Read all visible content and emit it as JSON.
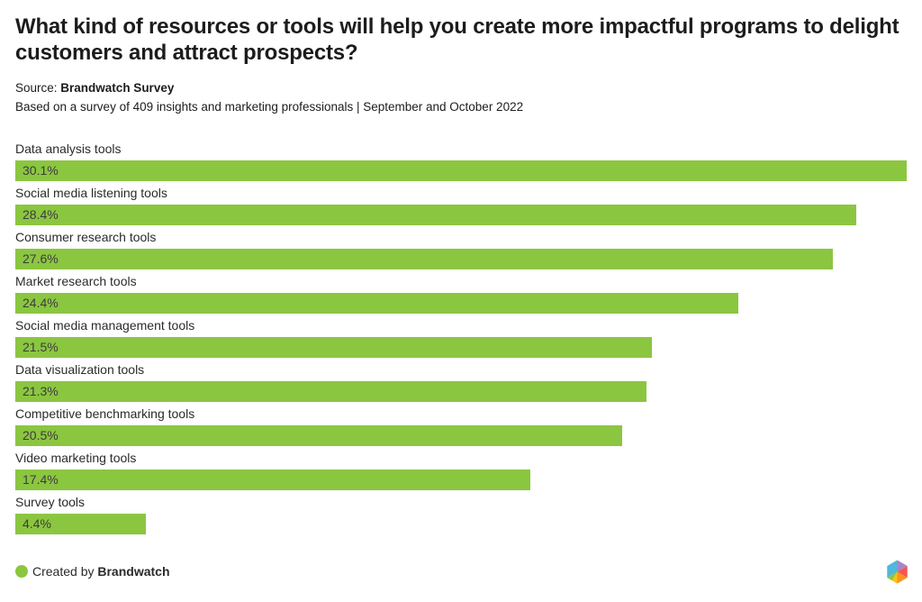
{
  "header": {
    "title": "What kind of resources or tools will help you create more impactful programs to delight customers and attract prospects?",
    "source_label": "Source:",
    "source_name": "Brandwatch Survey",
    "subtitle": "Based on a survey of 409 insights and marketing professionals | September and October 2022"
  },
  "chart_data": {
    "type": "bar",
    "orientation": "horizontal",
    "title": "What kind of resources or tools will help you create more impactful programs to delight customers and attract prospects?",
    "xlabel": "",
    "ylabel": "",
    "categories": [
      "Data analysis tools",
      "Social media listening tools",
      "Consumer research tools",
      "Market research tools",
      "Social media management tools",
      "Data visualization tools",
      "Competitive benchmarking tools",
      "Video marketing tools",
      "Survey tools"
    ],
    "values": [
      30.1,
      28.4,
      27.6,
      24.4,
      21.5,
      21.3,
      20.5,
      17.4,
      4.4
    ],
    "value_labels": [
      "30.1%",
      "28.4%",
      "27.6%",
      "24.4%",
      "21.5%",
      "21.3%",
      "20.5%",
      "17.4%",
      "4.4%"
    ],
    "xlim": [
      0,
      30.1
    ],
    "bar_color": "#8bc640",
    "value_text_color": "#3c3c3c",
    "grid": false,
    "legend": false
  },
  "footer": {
    "created_by_label": "Created by",
    "created_by_name": "Brandwatch",
    "dot_color": "#8bc640"
  },
  "logo": {
    "name": "brandwatch-hexagon-logo",
    "colors": {
      "blue": "#4fb8dc",
      "purple": "#a984c9",
      "red": "#f4564e",
      "orange": "#f7941d",
      "yellow": "#ffc20e",
      "green": "#8cc63f"
    }
  }
}
